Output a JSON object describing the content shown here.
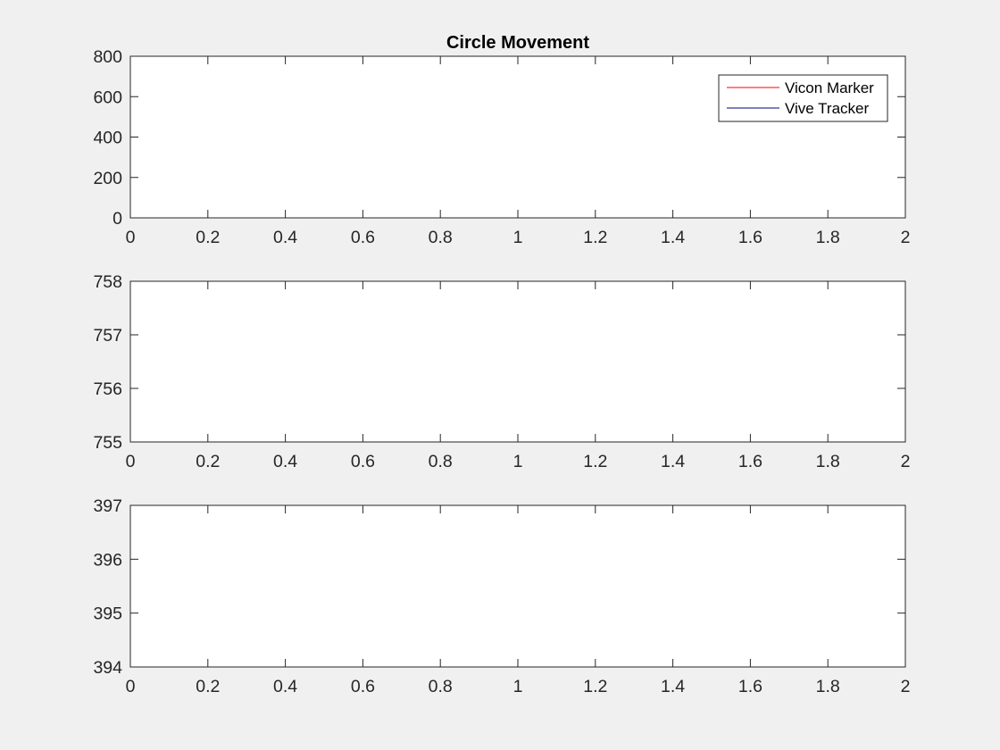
{
  "figure": {
    "background": "#f0f0f0",
    "axes_background": "#ffffff",
    "axis_color": "#262626"
  },
  "chart_data": [
    {
      "type": "line",
      "title": "Circle Movement",
      "xlabel": "",
      "ylabel": "",
      "xlim": [
        0,
        2
      ],
      "ylim": [
        0,
        800
      ],
      "xticks": [
        0,
        0.2,
        0.4,
        0.6,
        0.8,
        1,
        1.2,
        1.4,
        1.6,
        1.8,
        2
      ],
      "xticklabels": [
        "0",
        "0.2",
        "0.4",
        "0.6",
        "0.8",
        "1",
        "1.2",
        "1.4",
        "1.6",
        "1.8",
        "2"
      ],
      "yticks": [
        0,
        200,
        400,
        600,
        800
      ],
      "yticklabels": [
        "0",
        "200",
        "400",
        "600",
        "800"
      ],
      "grid": false,
      "legend": {
        "placement": "top-right",
        "entries": [
          {
            "label": "Vicon Marker",
            "color": "#ff0000"
          },
          {
            "label": "Vive Tracker",
            "color": "#00007f"
          }
        ]
      },
      "series": [
        {
          "name": "Vicon Marker",
          "color": "#ff0000",
          "x": [],
          "y": []
        },
        {
          "name": "Vive Tracker",
          "color": "#00007f",
          "x": [],
          "y": []
        }
      ]
    },
    {
      "type": "line",
      "title": "",
      "xlabel": "",
      "ylabel": "",
      "xlim": [
        0,
        2
      ],
      "ylim": [
        755,
        758
      ],
      "xticks": [
        0,
        0.2,
        0.4,
        0.6,
        0.8,
        1,
        1.2,
        1.4,
        1.6,
        1.8,
        2
      ],
      "xticklabels": [
        "0",
        "0.2",
        "0.4",
        "0.6",
        "0.8",
        "1",
        "1.2",
        "1.4",
        "1.6",
        "1.8",
        "2"
      ],
      "yticks": [
        755,
        756,
        757,
        758
      ],
      "yticklabels": [
        "755",
        "756",
        "757",
        "758"
      ],
      "grid": false,
      "series": [
        {
          "color": "#ff0000",
          "x": [],
          "y": []
        },
        {
          "color": "#00007f",
          "x": [],
          "y": []
        }
      ]
    },
    {
      "type": "line",
      "title": "",
      "xlabel": "",
      "ylabel": "",
      "xlim": [
        0,
        2
      ],
      "ylim": [
        394,
        397
      ],
      "xticks": [
        0,
        0.2,
        0.4,
        0.6,
        0.8,
        1,
        1.2,
        1.4,
        1.6,
        1.8,
        2
      ],
      "xticklabels": [
        "0",
        "0.2",
        "0.4",
        "0.6",
        "0.8",
        "1",
        "1.2",
        "1.4",
        "1.6",
        "1.8",
        "2"
      ],
      "yticks": [
        394,
        395,
        396,
        397
      ],
      "yticklabels": [
        "394",
        "395",
        "396",
        "397"
      ],
      "grid": false,
      "series": [
        {
          "color": "#ff0000",
          "x": [],
          "y": []
        },
        {
          "color": "#00007f",
          "x": [],
          "y": []
        }
      ]
    }
  ]
}
